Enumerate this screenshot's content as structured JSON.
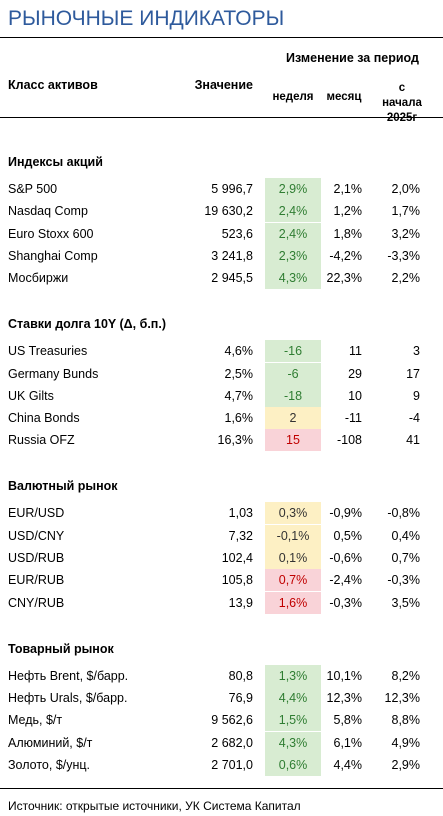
{
  "title": "РЫНОЧНЫЕ ИНДИКАТОРЫ",
  "header": {
    "asset_class": "Класс активов",
    "value": "Значение",
    "change_period": "Изменение за период",
    "week": "неделя",
    "month": "месяц",
    "ytd": "с начала 2025г"
  },
  "sections": [
    {
      "title": "Индексы акций",
      "rows": [
        [
          "S&P 500",
          "5 996,7",
          "2,9%",
          "2,1%",
          "2,0%"
        ],
        [
          "Nasdaq Comp",
          "19 630,2",
          "2,4%",
          "1,2%",
          "1,7%"
        ],
        [
          "Euro Stoxx 600",
          "523,6",
          "2,4%",
          "1,8%",
          "3,2%"
        ],
        [
          "Shanghai Comp",
          "3 241,8",
          "2,3%",
          "-4,2%",
          "-3,3%"
        ],
        [
          "Мосбиржи",
          "2 945,5",
          "4,3%",
          "22,3%",
          "2,2%"
        ]
      ],
      "week_tone": [
        "green",
        "green",
        "green",
        "green",
        "green"
      ]
    },
    {
      "title": "Ставки долга 10Y (Δ, б.п.)",
      "rows": [
        [
          "US Treasuries",
          "4,6%",
          "-16",
          "11",
          "3"
        ],
        [
          "Germany Bunds",
          "2,5%",
          "-6",
          "29",
          "17"
        ],
        [
          "UK Gilts",
          "4,7%",
          "-18",
          "10",
          "9"
        ],
        [
          "China Bonds",
          "1,6%",
          "2",
          "-11",
          "-4"
        ],
        [
          "Russia OFZ",
          "16,3%",
          "15",
          "-108",
          "41"
        ]
      ],
      "week_tone": [
        "green",
        "green",
        "green",
        "yellow",
        "red"
      ]
    },
    {
      "title": "Валютный рынок",
      "rows": [
        [
          "EUR/USD",
          "1,03",
          "0,3%",
          "-0,9%",
          "-0,8%"
        ],
        [
          "USD/CNY",
          "7,32",
          "-0,1%",
          "0,5%",
          "0,4%"
        ],
        [
          "USD/RUB",
          "102,4",
          "0,1%",
          "-0,6%",
          "0,7%"
        ],
        [
          "EUR/RUB",
          "105,8",
          "0,7%",
          "-2,4%",
          "-0,3%"
        ],
        [
          "CNY/RUB",
          "13,9",
          "1,6%",
          "-0,3%",
          "3,5%"
        ]
      ],
      "week_tone": [
        "yellow",
        "yellow",
        "yellow",
        "red",
        "red"
      ]
    },
    {
      "title": "Товарный рынок",
      "rows": [
        [
          "Нефть Brent, $/барр.",
          "80,8",
          "1,3%",
          "10,1%",
          "8,2%"
        ],
        [
          "Нефть Urals, $/барр.",
          "76,9",
          "4,4%",
          "12,3%",
          "12,3%"
        ],
        [
          "Медь, $/т",
          "9 562,6",
          "1,5%",
          "5,8%",
          "8,8%"
        ],
        [
          "Алюминий, $/т",
          "2 682,0",
          "4,3%",
          "6,1%",
          "4,9%"
        ],
        [
          "Золото, $/унц.",
          "2 701,0",
          "0,6%",
          "4,4%",
          "2,9%"
        ]
      ],
      "week_tone": [
        "green",
        "green",
        "green",
        "green",
        "green"
      ]
    }
  ],
  "source": "Источник: открытые источники, УК Система Капитал"
}
